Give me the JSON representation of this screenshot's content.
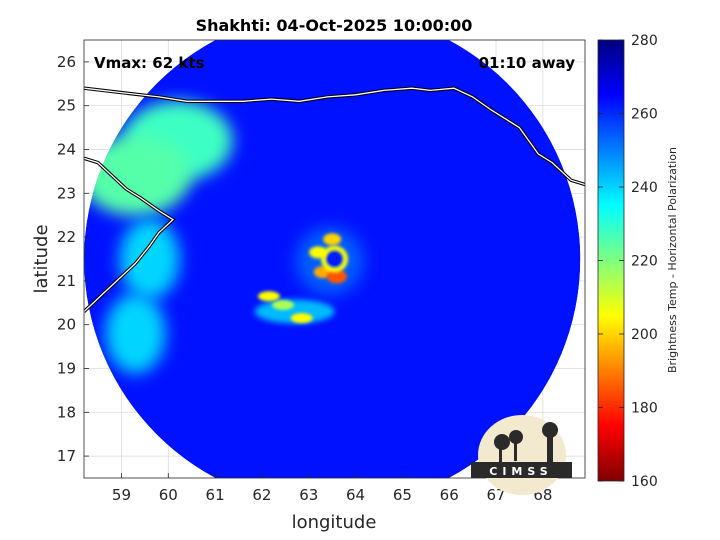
{
  "chart_data": {
    "type": "heatmap",
    "title": "Shakhti: 04-Oct-2025 10:00:00",
    "annotations": {
      "vmax": "Vmax: 62 kts",
      "time_away": "01:10 away"
    },
    "xlabel": "longitude",
    "ylabel": "latitude",
    "xlim": [
      58.2,
      68.9
    ],
    "ylim": [
      16.5,
      26.5
    ],
    "xticks": [
      59,
      60,
      61,
      62,
      63,
      64,
      65,
      66,
      67,
      68
    ],
    "yticks": [
      17,
      18,
      19,
      20,
      21,
      22,
      23,
      24,
      25,
      26
    ],
    "grid": true,
    "colorbar": {
      "label": "Brightness Temp - Horizontal Polarization",
      "range": [
        160,
        280
      ],
      "ticks": [
        160,
        180,
        200,
        220,
        240,
        260,
        280
      ],
      "colormap": "jet"
    },
    "field": {
      "center": [
        63.5,
        21.5
      ],
      "radius_deg": 5.3,
      "background_value": 263,
      "features": [
        {
          "feature": "eye",
          "lon": 63.55,
          "lat": 21.5,
          "value": 262
        },
        {
          "feature": "eyewall core",
          "lon": 63.6,
          "lat": 21.1,
          "value": 185
        },
        {
          "feature": "eyewall",
          "lon": 63.3,
          "lat": 21.2,
          "value": 195
        },
        {
          "feature": "eyewall",
          "lon": 63.5,
          "lat": 21.95,
          "value": 200
        },
        {
          "feature": "eyewall",
          "lon": 63.2,
          "lat": 21.65,
          "value": 205
        },
        {
          "feature": "rainband",
          "lon": 62.85,
          "lat": 20.15,
          "value": 205
        },
        {
          "feature": "rainband",
          "lon": 62.15,
          "lat": 20.65,
          "value": 205
        },
        {
          "feature": "rainband",
          "lon": 62.45,
          "lat": 20.45,
          "value": 215
        },
        {
          "feature": "warm land/coast",
          "lon": 60.2,
          "lat": 24.2,
          "value": 228
        },
        {
          "feature": "warm land/coast",
          "lon": 59.3,
          "lat": 23.4,
          "value": 225
        },
        {
          "feature": "near-coast band",
          "lon": 59.6,
          "lat": 21.5,
          "value": 240
        },
        {
          "feature": "near-coast band",
          "lon": 59.3,
          "lat": 19.8,
          "value": 240
        }
      ]
    },
    "coastline": {
      "north": [
        [
          58.2,
          25.4
        ],
        [
          59.0,
          25.3
        ],
        [
          59.8,
          25.2
        ],
        [
          60.4,
          25.1
        ],
        [
          61.0,
          25.1
        ],
        [
          61.6,
          25.1
        ],
        [
          62.2,
          25.15
        ],
        [
          62.8,
          25.1
        ],
        [
          63.4,
          25.2
        ],
        [
          64.0,
          25.25
        ],
        [
          64.6,
          25.35
        ],
        [
          65.2,
          25.4
        ],
        [
          65.6,
          25.35
        ],
        [
          66.1,
          25.4
        ],
        [
          66.5,
          25.2
        ],
        [
          66.9,
          24.9
        ],
        [
          67.2,
          24.7
        ],
        [
          67.5,
          24.5
        ],
        [
          67.7,
          24.2
        ],
        [
          67.9,
          23.9
        ],
        [
          68.2,
          23.7
        ],
        [
          68.6,
          23.3
        ],
        [
          68.9,
          23.2
        ]
      ],
      "west": [
        [
          58.2,
          23.8
        ],
        [
          58.5,
          23.7
        ],
        [
          58.8,
          23.4
        ],
        [
          59.1,
          23.1
        ],
        [
          59.4,
          22.9
        ],
        [
          59.8,
          22.6
        ],
        [
          60.1,
          22.4
        ],
        [
          59.8,
          22.1
        ],
        [
          59.6,
          21.8
        ],
        [
          59.3,
          21.4
        ],
        [
          58.9,
          21.0
        ],
        [
          58.6,
          20.7
        ],
        [
          58.2,
          20.3
        ]
      ]
    },
    "logo_text": "CIMSS"
  }
}
